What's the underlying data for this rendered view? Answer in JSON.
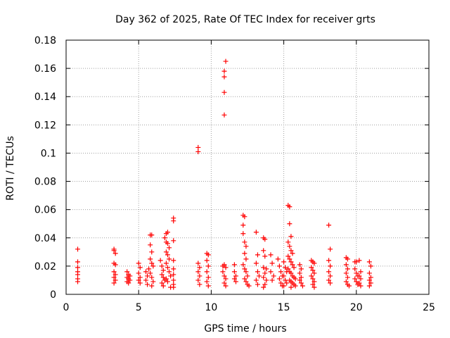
{
  "chart_data": {
    "type": "scatter",
    "title": "Day 362 of 2025, Rate Of TEC Index for receiver grts",
    "xlabel": "GPS time / hours",
    "ylabel": "ROTI / TECUs",
    "xlim": [
      0,
      25
    ],
    "ylim": [
      0,
      0.18
    ],
    "x_ticks": [
      "0",
      "5",
      "10",
      "15",
      "20",
      "25"
    ],
    "y_ticks": [
      "0",
      "0.02",
      "0.04",
      "0.06",
      "0.08",
      "0.1",
      "0.12",
      "0.14",
      "0.16",
      "0.18"
    ],
    "grid": true,
    "marker": "plus",
    "color": "#ff0000",
    "series": [
      {
        "points": [
          [
            0.8,
            0.032
          ],
          [
            0.8,
            0.023
          ],
          [
            0.8,
            0.019
          ],
          [
            0.8,
            0.016
          ],
          [
            0.8,
            0.014
          ],
          [
            0.8,
            0.011
          ],
          [
            0.8,
            0.009
          ],
          [
            3.3,
            0.032
          ],
          [
            3.3,
            0.031
          ],
          [
            3.4,
            0.029
          ],
          [
            3.3,
            0.022
          ],
          [
            3.4,
            0.021
          ],
          [
            3.3,
            0.016
          ],
          [
            3.4,
            0.014
          ],
          [
            3.3,
            0.012
          ],
          [
            3.4,
            0.01
          ],
          [
            3.3,
            0.008
          ],
          [
            4.2,
            0.016
          ],
          [
            4.3,
            0.014
          ],
          [
            4.4,
            0.013
          ],
          [
            4.2,
            0.012
          ],
          [
            4.3,
            0.011
          ],
          [
            4.4,
            0.01
          ],
          [
            4.2,
            0.009
          ],
          [
            4.3,
            0.008
          ],
          [
            5.0,
            0.022
          ],
          [
            5.1,
            0.019
          ],
          [
            5.0,
            0.015
          ],
          [
            5.1,
            0.012
          ],
          [
            5.0,
            0.01
          ],
          [
            5.1,
            0.008
          ],
          [
            5.5,
            0.016
          ],
          [
            5.6,
            0.013
          ],
          [
            5.5,
            0.01
          ],
          [
            5.6,
            0.007
          ],
          [
            5.7,
            0.018
          ],
          [
            5.8,
            0.015
          ],
          [
            5.9,
            0.012
          ],
          [
            6.0,
            0.009
          ],
          [
            5.9,
            0.006
          ],
          [
            5.8,
            0.042
          ],
          [
            5.9,
            0.042
          ],
          [
            5.8,
            0.035
          ],
          [
            5.9,
            0.03
          ],
          [
            5.8,
            0.025
          ],
          [
            5.9,
            0.022
          ],
          [
            6.0,
            0.02
          ],
          [
            6.5,
            0.024
          ],
          [
            6.6,
            0.02
          ],
          [
            6.7,
            0.017
          ],
          [
            6.6,
            0.014
          ],
          [
            6.7,
            0.012
          ],
          [
            6.8,
            0.01
          ],
          [
            6.6,
            0.008
          ],
          [
            6.7,
            0.006
          ],
          [
            6.8,
            0.04
          ],
          [
            6.9,
            0.043
          ],
          [
            7.0,
            0.044
          ],
          [
            6.9,
            0.037
          ],
          [
            7.0,
            0.036
          ],
          [
            7.1,
            0.033
          ],
          [
            6.9,
            0.03
          ],
          [
            7.0,
            0.028
          ],
          [
            7.1,
            0.025
          ],
          [
            6.9,
            0.022
          ],
          [
            7.0,
            0.019
          ],
          [
            7.1,
            0.016
          ],
          [
            7.2,
            0.013
          ],
          [
            6.9,
            0.011
          ],
          [
            7.0,
            0.009
          ],
          [
            7.2,
            0.005
          ],
          [
            7.4,
            0.054
          ],
          [
            7.4,
            0.052
          ],
          [
            7.4,
            0.038
          ],
          [
            7.4,
            0.024
          ],
          [
            7.4,
            0.018
          ],
          [
            7.4,
            0.014
          ],
          [
            7.4,
            0.01
          ],
          [
            7.4,
            0.007
          ],
          [
            7.4,
            0.005
          ],
          [
            9.1,
            0.104
          ],
          [
            9.1,
            0.101
          ],
          [
            9.1,
            0.022
          ],
          [
            9.2,
            0.019
          ],
          [
            9.1,
            0.016
          ],
          [
            9.2,
            0.013
          ],
          [
            9.1,
            0.01
          ],
          [
            9.2,
            0.007
          ],
          [
            9.7,
            0.029
          ],
          [
            9.8,
            0.028
          ],
          [
            9.7,
            0.024
          ],
          [
            9.8,
            0.02
          ],
          [
            9.7,
            0.016
          ],
          [
            9.8,
            0.012
          ],
          [
            9.7,
            0.009
          ],
          [
            9.8,
            0.006
          ],
          [
            11.0,
            0.165
          ],
          [
            10.9,
            0.158
          ],
          [
            10.9,
            0.154
          ],
          [
            10.9,
            0.143
          ],
          [
            10.9,
            0.127
          ],
          [
            10.8,
            0.02
          ],
          [
            10.9,
            0.021
          ],
          [
            11.0,
            0.019
          ],
          [
            10.8,
            0.016
          ],
          [
            10.9,
            0.013
          ],
          [
            11.0,
            0.011
          ],
          [
            10.9,
            0.008
          ],
          [
            11.0,
            0.006
          ],
          [
            11.6,
            0.021
          ],
          [
            11.6,
            0.016
          ],
          [
            11.7,
            0.013
          ],
          [
            11.6,
            0.011
          ],
          [
            11.7,
            0.009
          ],
          [
            12.2,
            0.056
          ],
          [
            12.3,
            0.055
          ],
          [
            12.2,
            0.049
          ],
          [
            12.2,
            0.043
          ],
          [
            12.3,
            0.037
          ],
          [
            12.4,
            0.034
          ],
          [
            12.3,
            0.029
          ],
          [
            12.4,
            0.025
          ],
          [
            12.2,
            0.021
          ],
          [
            12.3,
            0.018
          ],
          [
            12.4,
            0.016
          ],
          [
            12.5,
            0.013
          ],
          [
            12.3,
            0.011
          ],
          [
            12.4,
            0.009
          ],
          [
            12.5,
            0.007
          ],
          [
            12.6,
            0.006
          ],
          [
            13.1,
            0.044
          ],
          [
            13.2,
            0.028
          ],
          [
            13.1,
            0.022
          ],
          [
            13.2,
            0.016
          ],
          [
            13.3,
            0.013
          ],
          [
            13.1,
            0.01
          ],
          [
            13.2,
            0.007
          ],
          [
            13.6,
            0.04
          ],
          [
            13.7,
            0.039
          ],
          [
            13.6,
            0.031
          ],
          [
            13.7,
            0.027
          ],
          [
            13.6,
            0.019
          ],
          [
            13.8,
            0.018
          ],
          [
            13.7,
            0.015
          ],
          [
            13.6,
            0.012
          ],
          [
            13.8,
            0.01
          ],
          [
            13.7,
            0.007
          ],
          [
            13.6,
            0.005
          ],
          [
            14.1,
            0.028
          ],
          [
            14.2,
            0.022
          ],
          [
            14.1,
            0.016
          ],
          [
            14.3,
            0.013
          ],
          [
            14.2,
            0.01
          ],
          [
            14.6,
            0.025
          ],
          [
            14.7,
            0.02
          ],
          [
            14.8,
            0.016
          ],
          [
            14.9,
            0.013
          ],
          [
            14.7,
            0.011
          ],
          [
            14.8,
            0.008
          ],
          [
            14.9,
            0.006
          ],
          [
            15.0,
            0.023
          ],
          [
            15.1,
            0.019
          ],
          [
            15.2,
            0.016
          ],
          [
            15.0,
            0.013
          ],
          [
            15.1,
            0.01
          ],
          [
            15.2,
            0.008
          ],
          [
            15.0,
            0.006
          ],
          [
            15.3,
            0.063
          ],
          [
            15.4,
            0.062
          ],
          [
            15.4,
            0.05
          ],
          [
            15.5,
            0.041
          ],
          [
            15.3,
            0.037
          ],
          [
            15.4,
            0.034
          ],
          [
            15.5,
            0.031
          ],
          [
            15.6,
            0.029
          ],
          [
            15.3,
            0.027
          ],
          [
            15.4,
            0.025
          ],
          [
            15.5,
            0.023
          ],
          [
            15.6,
            0.021
          ],
          [
            15.7,
            0.019
          ],
          [
            15.3,
            0.018
          ],
          [
            15.4,
            0.016
          ],
          [
            15.5,
            0.015
          ],
          [
            15.6,
            0.013
          ],
          [
            15.7,
            0.012
          ],
          [
            15.8,
            0.011
          ],
          [
            15.4,
            0.01
          ],
          [
            15.5,
            0.009
          ],
          [
            15.6,
            0.008
          ],
          [
            15.7,
            0.007
          ],
          [
            15.8,
            0.006
          ],
          [
            15.5,
            0.005
          ],
          [
            16.1,
            0.021
          ],
          [
            16.2,
            0.018
          ],
          [
            16.1,
            0.015
          ],
          [
            16.2,
            0.012
          ],
          [
            16.1,
            0.01
          ],
          [
            16.2,
            0.008
          ],
          [
            16.3,
            0.006
          ],
          [
            16.9,
            0.024
          ],
          [
            17.0,
            0.023
          ],
          [
            17.1,
            0.022
          ],
          [
            16.9,
            0.019
          ],
          [
            17.0,
            0.017
          ],
          [
            17.1,
            0.015
          ],
          [
            16.9,
            0.013
          ],
          [
            17.0,
            0.011
          ],
          [
            17.1,
            0.009
          ],
          [
            17.0,
            0.007
          ],
          [
            17.1,
            0.005
          ],
          [
            18.1,
            0.049
          ],
          [
            18.2,
            0.032
          ],
          [
            18.1,
            0.024
          ],
          [
            18.2,
            0.02
          ],
          [
            18.1,
            0.016
          ],
          [
            18.2,
            0.013
          ],
          [
            18.1,
            0.01
          ],
          [
            18.2,
            0.008
          ],
          [
            19.3,
            0.026
          ],
          [
            19.4,
            0.025
          ],
          [
            19.3,
            0.021
          ],
          [
            19.4,
            0.018
          ],
          [
            19.3,
            0.015
          ],
          [
            19.4,
            0.012
          ],
          [
            19.3,
            0.009
          ],
          [
            19.4,
            0.007
          ],
          [
            19.5,
            0.006
          ],
          [
            19.9,
            0.023
          ],
          [
            20.0,
            0.023
          ],
          [
            19.9,
            0.018
          ],
          [
            20.0,
            0.015
          ],
          [
            20.1,
            0.013
          ],
          [
            19.9,
            0.011
          ],
          [
            20.0,
            0.009
          ],
          [
            20.1,
            0.007
          ],
          [
            20.2,
            0.024
          ],
          [
            20.3,
            0.016
          ],
          [
            20.2,
            0.013
          ],
          [
            20.3,
            0.011
          ],
          [
            20.2,
            0.008
          ],
          [
            20.3,
            0.006
          ],
          [
            20.9,
            0.023
          ],
          [
            21.0,
            0.02
          ],
          [
            20.9,
            0.015
          ],
          [
            21.0,
            0.012
          ],
          [
            20.9,
            0.01
          ],
          [
            21.0,
            0.008
          ],
          [
            20.9,
            0.006
          ]
        ]
      }
    ]
  }
}
